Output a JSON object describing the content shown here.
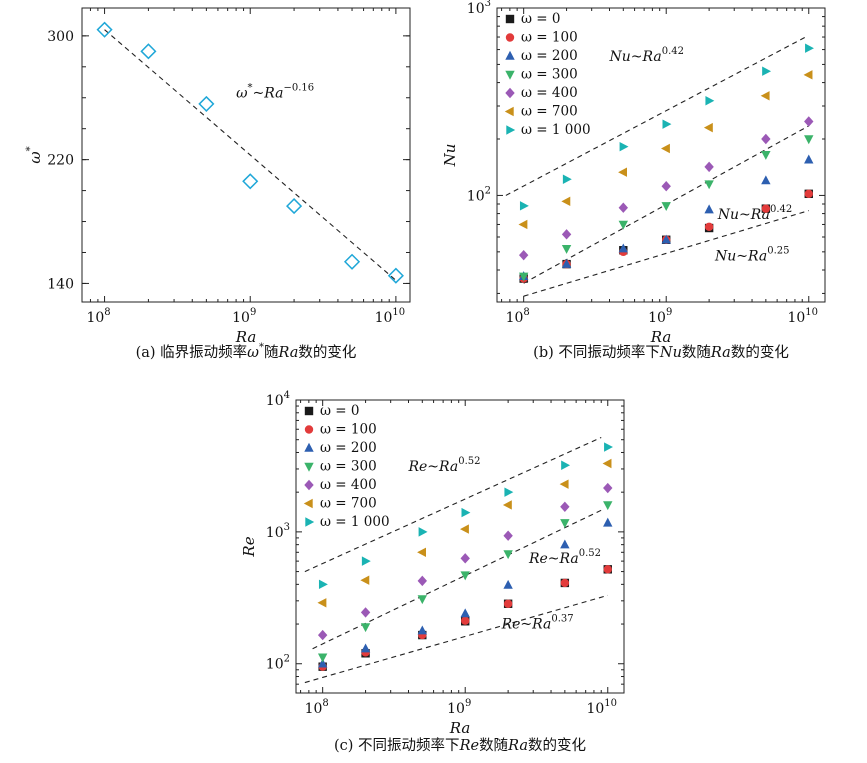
{
  "chart_data": [
    {
      "type": "scatter",
      "panel_id": "a",
      "caption_prefix": "(a) 临界振动频率",
      "caption_symbol": "ω",
      "caption_suffix": "随",
      "caption_ra": "Ra",
      "caption_tail": "数的变化",
      "xlabel": "Ra",
      "ylabel": "ω",
      "ylabel_sup": "*",
      "x_scale": "log",
      "y_scale": "linear",
      "xlim": [
        70000000,
        12500000000
      ],
      "ylim": [
        128,
        318
      ],
      "x_ticks": [
        {
          "value": 100000000,
          "base": "10",
          "exp": "8"
        },
        {
          "value": 1000000000,
          "base": "10",
          "exp": "9"
        },
        {
          "value": 10000000000,
          "base": "10",
          "exp": "10"
        }
      ],
      "y_ticks": [
        {
          "value": 140,
          "label": "140"
        },
        {
          "value": 220,
          "label": "220"
        },
        {
          "value": 300,
          "label": "300"
        }
      ],
      "marker": "open-diamond",
      "marker_color": "#1fa7d8",
      "points": [
        {
          "x": 100000000,
          "y": 304
        },
        {
          "x": 200000000,
          "y": 290
        },
        {
          "x": 500000000,
          "y": 256
        },
        {
          "x": 1000000000,
          "y": 206
        },
        {
          "x": 2000000000,
          "y": 190
        },
        {
          "x": 5000000000,
          "y": 154
        },
        {
          "x": 10000000000,
          "y": 145
        }
      ],
      "fits": [
        {
          "label": "ω",
          "label_sup_star": "*",
          "label_mid": "~Ra",
          "exponent": "−0.16",
          "x0": 100000000,
          "y0": 304,
          "x1": 10000000000,
          "y1": 142,
          "text_x": 800000000,
          "text_y": 260
        }
      ]
    },
    {
      "type": "scatter",
      "panel_id": "b",
      "caption_prefix": "(b) 不同振动频率下",
      "caption_var": "Nu",
      "caption_mid": "数随",
      "caption_ra": "Ra",
      "caption_tail": "数的变化",
      "xlabel": "Ra",
      "ylabel": "Nu",
      "x_scale": "log",
      "y_scale": "log",
      "xlim": [
        65000000,
        13000000000
      ],
      "ylim": [
        27,
        1000
      ],
      "x_ticks": [
        {
          "value": 100000000,
          "base": "10",
          "exp": "8"
        },
        {
          "value": 1000000000,
          "base": "10",
          "exp": "9"
        },
        {
          "value": 10000000000,
          "base": "10",
          "exp": "10"
        }
      ],
      "y_ticks": [
        {
          "value": 100,
          "base": "10",
          "exp": "2"
        },
        {
          "value": 1000,
          "base": "10",
          "exp": "3"
        }
      ],
      "x": [
        100000000,
        200000000,
        500000000,
        1000000000,
        2000000000,
        5000000000,
        10000000000
      ],
      "series": [
        {
          "name": "ω = 0",
          "marker": "square",
          "color": "#1a1a1a",
          "values": [
            36,
            43,
            51,
            58,
            67,
            85,
            102
          ]
        },
        {
          "name": "ω = 100",
          "marker": "circle",
          "color": "#e23b3b",
          "values": [
            36,
            43,
            50,
            58,
            68,
            85,
            102
          ]
        },
        {
          "name": "ω = 200",
          "marker": "triangle-up",
          "color": "#2d5fb0",
          "values": [
            37,
            43,
            52,
            58,
            84,
            120,
            155
          ]
        },
        {
          "name": "ω = 300",
          "marker": "triangle-down",
          "color": "#3bb36a",
          "values": [
            37,
            52,
            70,
            88,
            115,
            165,
            200
          ]
        },
        {
          "name": "ω = 400",
          "marker": "diamond",
          "color": "#9b59b6",
          "values": [
            48,
            62,
            86,
            112,
            142,
            200,
            248
          ]
        },
        {
          "name": "ω = 700",
          "marker": "triangle-left",
          "color": "#c9901a",
          "values": [
            70,
            93,
            133,
            178,
            230,
            340,
            440
          ]
        },
        {
          "name": "ω = 1 000",
          "marker": "triangle-right",
          "color": "#1ab3b3",
          "values": [
            88,
            122,
            182,
            240,
            320,
            460,
            610
          ]
        }
      ],
      "fits": [
        {
          "label": "Nu~Ra",
          "exponent": "0.42",
          "x0": 75000000,
          "y0": 100,
          "x1": 9500000000,
          "y1": 700,
          "text_x": 400000000,
          "text_y": 520
        },
        {
          "label": "Nu~Ra",
          "exponent": "0.42",
          "x0": 100000000,
          "y0": 34,
          "x1": 10000000000,
          "y1": 235,
          "text_x": 2300000000,
          "text_y": 75
        },
        {
          "label": "Nu~Ra",
          "exponent": "0.25",
          "x0": 100000000,
          "y0": 29,
          "x1": 10000000000,
          "y1": 83,
          "text_x": 2200000000,
          "text_y": 45
        }
      ]
    },
    {
      "type": "scatter",
      "panel_id": "c",
      "caption_prefix": "(c) 不同振动频率下",
      "caption_var": "Re",
      "caption_mid": "数随",
      "caption_ra": "Ra",
      "caption_tail": "数的变化",
      "xlabel": "Ra",
      "ylabel": "Re",
      "x_scale": "log",
      "y_scale": "log",
      "xlim": [
        65000000,
        13000000000
      ],
      "ylim": [
        60,
        10000
      ],
      "x_ticks": [
        {
          "value": 100000000,
          "base": "10",
          "exp": "8"
        },
        {
          "value": 1000000000,
          "base": "10",
          "exp": "9"
        },
        {
          "value": 10000000000,
          "base": "10",
          "exp": "10"
        }
      ],
      "y_ticks": [
        {
          "value": 100,
          "base": "10",
          "exp": "2"
        },
        {
          "value": 1000,
          "base": "10",
          "exp": "3"
        },
        {
          "value": 10000,
          "base": "10",
          "exp": "4"
        }
      ],
      "x": [
        100000000,
        200000000,
        500000000,
        1000000000,
        2000000000,
        5000000000,
        10000000000
      ],
      "series": [
        {
          "name": "ω = 0",
          "marker": "square",
          "color": "#1a1a1a",
          "values": [
            95,
            120,
            165,
            210,
            285,
            410,
            520
          ]
        },
        {
          "name": "ω = 100",
          "marker": "circle",
          "color": "#e23b3b",
          "values": [
            95,
            122,
            165,
            212,
            285,
            410,
            520
          ]
        },
        {
          "name": "ω = 200",
          "marker": "triangle-up",
          "color": "#2d5fb0",
          "values": [
            100,
            130,
            178,
            240,
            395,
            800,
            1170
          ]
        },
        {
          "name": "ω = 300",
          "marker": "triangle-down",
          "color": "#3bb36a",
          "values": [
            112,
            190,
            310,
            470,
            680,
            1170,
            1600
          ]
        },
        {
          "name": "ω = 400",
          "marker": "diamond",
          "color": "#9b59b6",
          "values": [
            165,
            245,
            425,
            630,
            935,
            1550,
            2150
          ]
        },
        {
          "name": "ω = 700",
          "marker": "triangle-left",
          "color": "#c9901a",
          "values": [
            290,
            430,
            700,
            1050,
            1600,
            2300,
            3300
          ]
        },
        {
          "name": "ω = 1 000",
          "marker": "triangle-right",
          "color": "#1ab3b3",
          "values": [
            400,
            600,
            1000,
            1400,
            2000,
            3200,
            4400
          ]
        }
      ],
      "fits": [
        {
          "label": "Re~Ra",
          "exponent": "0.52",
          "x0": 75000000,
          "y0": 500,
          "x1": 9000000000,
          "y1": 5200,
          "text_x": 400000000,
          "text_y": 2900
        },
        {
          "label": "Re~Ra",
          "exponent": "0.52",
          "x0": 85000000,
          "y0": 130,
          "x1": 9500000000,
          "y1": 1500,
          "text_x": 2800000000,
          "text_y": 580
        },
        {
          "label": "Re~Ra",
          "exponent": "0.37",
          "x0": 75000000,
          "y0": 72,
          "x1": 10000000000,
          "y1": 330,
          "text_x": 1800000000,
          "text_y": 185
        }
      ]
    }
  ]
}
